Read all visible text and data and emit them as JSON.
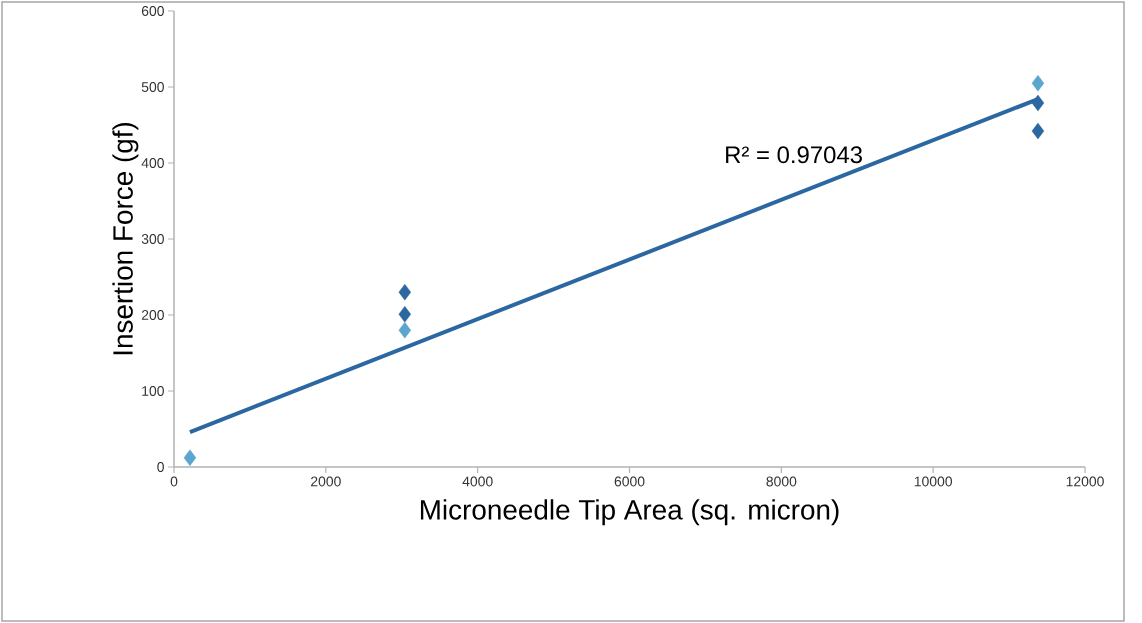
{
  "chart_data": {
    "type": "scatter",
    "xlabel": "Microneedle Tip Area (sq. micron)",
    "ylabel": "Insertion Force (gf)",
    "xlim": [
      0,
      12000
    ],
    "ylim": [
      0,
      600
    ],
    "xticks": [
      0,
      2000,
      4000,
      6000,
      8000,
      10000,
      12000
    ],
    "yticks": [
      0,
      100,
      200,
      300,
      400,
      500,
      600
    ],
    "grid": false,
    "annotations": [
      "R² = 0.97043"
    ],
    "series": [
      {
        "color": "#2b67a0",
        "marker": "diamond",
        "x": [
          3040,
          3040,
          11380,
          11380
        ],
        "values": [
          230,
          201,
          479,
          442
        ]
      },
      {
        "color": "#5aa6cf",
        "marker": "diamond",
        "x": [
          210,
          3040,
          11380
        ],
        "values": [
          12,
          180,
          505
        ]
      },
      {
        "type": "line",
        "marker": "none",
        "color": "#2b67a0",
        "x": [
          210,
          11380
        ],
        "values": [
          46,
          484
        ]
      }
    ]
  }
}
